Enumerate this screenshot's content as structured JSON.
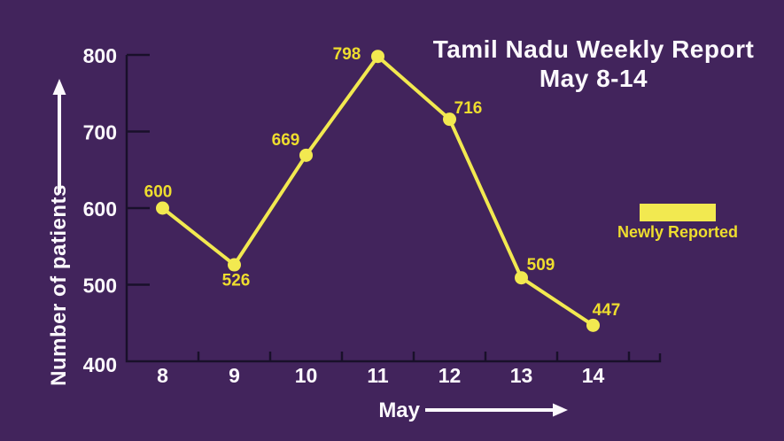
{
  "window": {
    "background": "#42245c"
  },
  "title": {
    "line1": "Tamil Nadu Weekly Report",
    "line2": "May 8-14",
    "color": "#fcf9fd"
  },
  "legend": {
    "label": "Newly Reported",
    "swatch_color": "#f2e950",
    "label_color": "#eedd2e"
  },
  "chart_data": {
    "type": "line",
    "title": "Tamil Nadu Weekly Report May 8-14",
    "categories": [
      "8",
      "9",
      "10",
      "11",
      "12",
      "13",
      "14"
    ],
    "series": [
      {
        "name": "Newly Reported",
        "values": [
          600,
          526,
          669,
          798,
          716,
          509,
          447
        ]
      }
    ],
    "xlabel": "May",
    "ylabel": "Number of patients",
    "ylim": [
      400,
      800
    ],
    "yticks": [
      400,
      500,
      600,
      700,
      800
    ],
    "grid": false,
    "legend_position": "right",
    "line_color": "#f2e950",
    "marker": "circle",
    "value_label_color": "#eedd2e",
    "axis_color": "#19102a",
    "tick_label_color": "#fcf9fd",
    "arrow_color": "#fcf9fd"
  }
}
